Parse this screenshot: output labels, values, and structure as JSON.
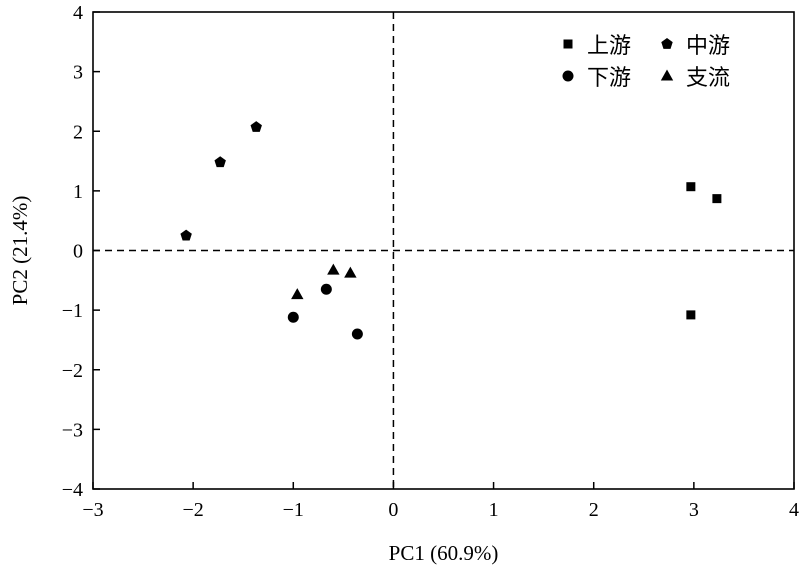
{
  "chart_data": {
    "type": "scatter",
    "xlabel": "PC1 (60.9%)",
    "ylabel": "PC2 (21.4%)",
    "xlim": [
      -3,
      4
    ],
    "ylim": [
      -4,
      4
    ],
    "xticks": [
      -3,
      -2,
      -1,
      0,
      1,
      2,
      3,
      4
    ],
    "yticks": [
      -4,
      -3,
      -2,
      -1,
      0,
      1,
      2,
      3,
      4
    ],
    "xtick_labels": [
      "−3",
      "−2",
      "−1",
      "0",
      "1",
      "2",
      "3",
      "4"
    ],
    "ytick_labels": [
      "−4",
      "−3",
      "−2",
      "−1",
      "0",
      "1",
      "2",
      "3",
      "4"
    ],
    "reference_lines": {
      "x": 0,
      "y": 0,
      "style": "dashed"
    },
    "grid": false,
    "legend_position": "top-right",
    "series": [
      {
        "name": "上游",
        "marker": "square",
        "points": [
          [
            2.97,
            1.07
          ],
          [
            3.23,
            0.87
          ],
          [
            2.97,
            -1.08
          ]
        ]
      },
      {
        "name": "中游",
        "marker": "pentagon",
        "points": [
          [
            -2.07,
            0.25
          ],
          [
            -1.73,
            1.48
          ],
          [
            -1.37,
            2.07
          ]
        ]
      },
      {
        "name": "下游",
        "marker": "circle",
        "points": [
          [
            -1.0,
            -1.12
          ],
          [
            -0.67,
            -0.65
          ],
          [
            -0.36,
            -1.4
          ]
        ]
      },
      {
        "name": "支流",
        "marker": "triangle",
        "points": [
          [
            -0.96,
            -0.74
          ],
          [
            -0.6,
            -0.33
          ],
          [
            -0.43,
            -0.38
          ]
        ]
      }
    ],
    "legend_layout": [
      [
        "上游",
        "中游"
      ],
      [
        "下游",
        "支流"
      ]
    ]
  }
}
